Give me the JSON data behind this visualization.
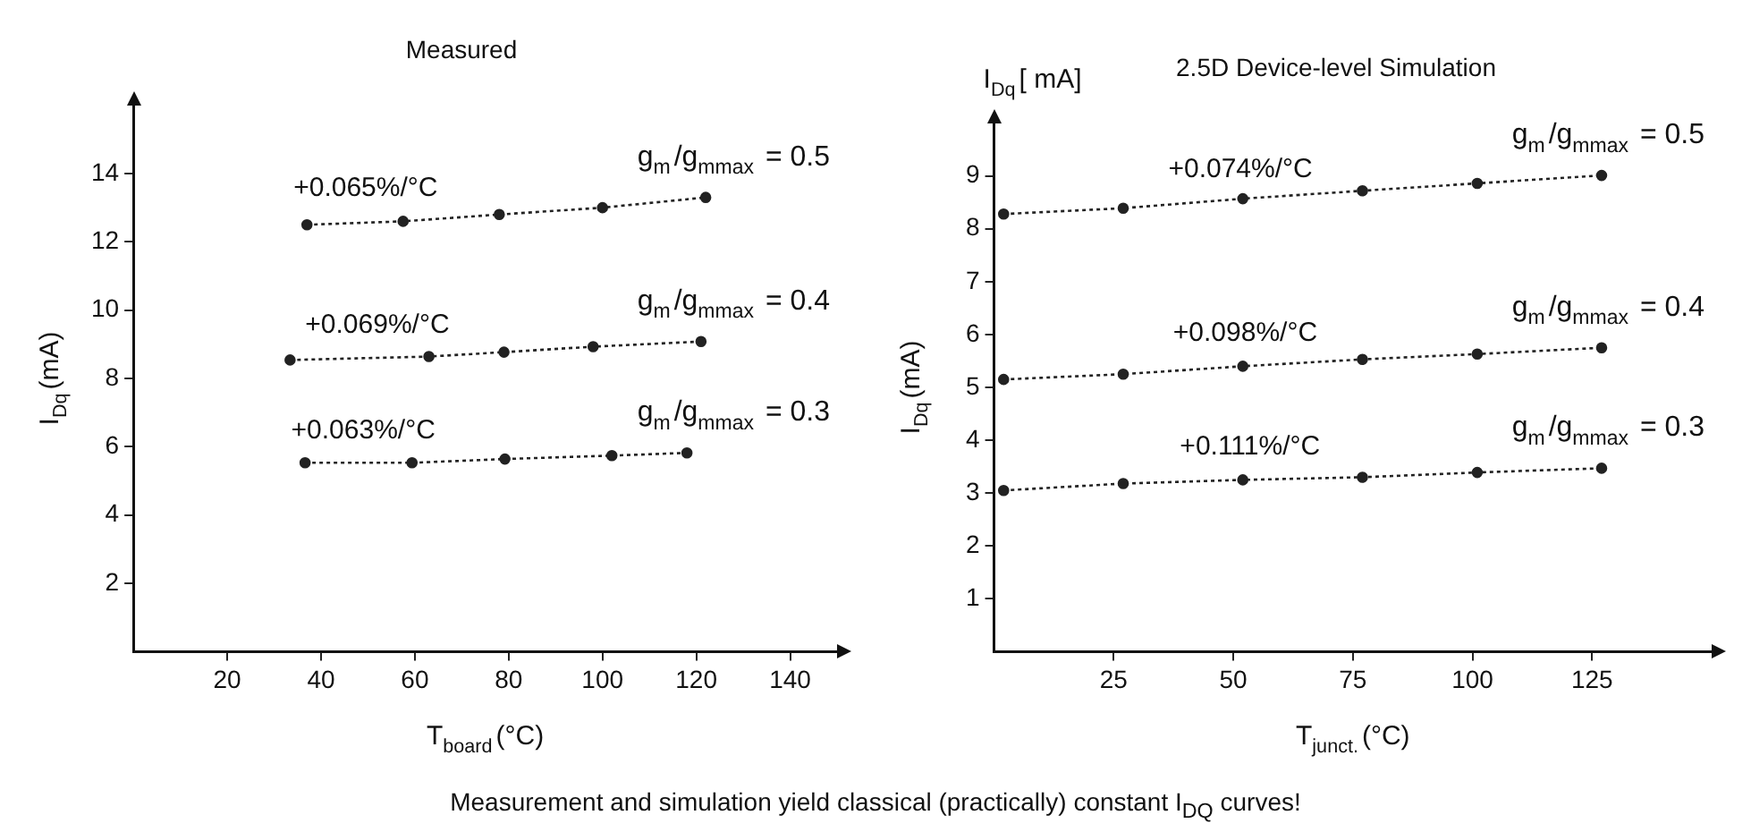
{
  "chart_data": [
    {
      "type": "line",
      "title": "Measured",
      "xlabel": "T$_{board}$(°C)",
      "ylabel": "I$_{Dq}$(mA)",
      "xlim": [
        0,
        150
      ],
      "xticks": [
        20,
        40,
        60,
        80,
        100,
        120,
        140
      ],
      "ylim": [
        0,
        16
      ],
      "yticks": [
        2,
        4,
        6,
        8,
        10,
        12,
        14
      ],
      "grid": false,
      "legend": false,
      "marker": "circle",
      "line_style": "dotted",
      "series": [
        {
          "name": "g$_{m}$/g$_{mmax}$ = 0.5",
          "color": "#222222",
          "x": [
            37,
            57.5,
            78,
            100,
            122
          ],
          "values": [
            12.5,
            12.6,
            12.8,
            13.0,
            13.3
          ]
        },
        {
          "name": "g$_{m}$/g$_{mmax}$ = 0.4",
          "color": "#222222",
          "x": [
            33.4,
            63,
            79,
            98,
            121
          ],
          "values": [
            8.54,
            8.64,
            8.77,
            8.93,
            9.08
          ]
        },
        {
          "name": "g$_{m}$/g$_{mmax}$ = 0.3",
          "color": "#222222",
          "x": [
            36.6,
            59.4,
            79.2,
            102,
            118
          ],
          "values": [
            5.53,
            5.53,
            5.64,
            5.74,
            5.82
          ]
        }
      ],
      "annotations": [
        {
          "text": "+0.065%/°C",
          "x": 49.5,
          "y": 12.6
        },
        {
          "text": "+0.069%/°C",
          "x": 52,
          "y": 8.6
        },
        {
          "text": "+0.063%/°C",
          "x": 49,
          "y": 5.5
        },
        "Measurement and simulation yield classical (practically) constant I$_{DQ}$ curves!"
      ]
    },
    {
      "type": "line",
      "title": "2.5D Device-level Simulation",
      "xlabel": "T$_{junct.}$(°C)",
      "ylabel": "I$_{Dq}$(mA)",
      "xlim": [
        0,
        150
      ],
      "xticks": [
        25,
        50,
        75,
        100,
        125
      ],
      "ylim": [
        0,
        10
      ],
      "yticks": [
        1,
        2,
        3,
        4,
        5,
        6,
        7,
        8,
        9
      ],
      "grid": false,
      "legend": false,
      "marker": "circle",
      "line_style": "dotted",
      "series": [
        {
          "name": "g$_{m}$/g$_{mmax}$ = 0.5",
          "color": "#222222",
          "x": [
            2,
            27,
            52,
            77,
            101,
            127
          ],
          "values": [
            8.28,
            8.39,
            8.57,
            8.72,
            8.86,
            9.01
          ]
        },
        {
          "name": "g$_{m}$/g$_{mmax}$ = 0.4",
          "color": "#222222",
          "x": [
            2,
            27,
            52,
            77,
            101,
            127
          ],
          "values": [
            5.15,
            5.25,
            5.4,
            5.53,
            5.63,
            5.75
          ]
        },
        {
          "name": "g$_{m}$/g$_{mmax}$ = 0.3",
          "color": "#222222",
          "x": [
            2,
            27,
            52,
            77,
            101,
            127
          ],
          "values": [
            3.05,
            3.18,
            3.25,
            3.3,
            3.39,
            3.47
          ]
        }
      ],
      "annotations": [
        {
          "text": "+0.074%/°C",
          "x": 51.5,
          "y": 8.5
        },
        {
          "text": "+0.098%/°C",
          "x": 52.5,
          "y": 5.4
        },
        {
          "text": "+0.111%/°C",
          "x": 53.5,
          "y": 3.25
        },
        "I$_{Dq}$[ mA]"
      ]
    }
  ]
}
